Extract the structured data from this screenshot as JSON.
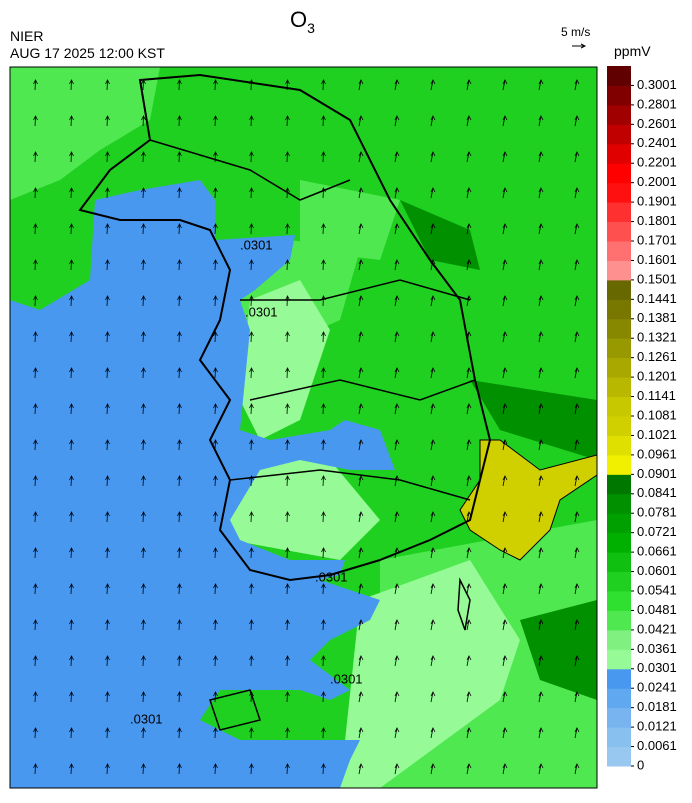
{
  "header": {
    "agency": "NIER",
    "datetime": "AUG 17 2025 12:00 KST",
    "title": {
      "main": "O",
      "sub": "3"
    },
    "wind_scale": "5 m/s"
  },
  "map": {
    "contour_label": ".0301"
  },
  "colorbar": {
    "unit": "ppmV",
    "ticks": [
      0,
      0.0061,
      0.0121,
      0.0181,
      0.0241,
      0.0301,
      0.0361,
      0.0421,
      0.0481,
      0.0541,
      0.0601,
      0.0661,
      0.0721,
      0.0781,
      0.0841,
      0.0901,
      0.0961,
      0.1021,
      0.1081,
      0.1141,
      0.1201,
      0.1261,
      0.1321,
      0.1381,
      0.1441,
      0.1501,
      0.1601,
      0.1701,
      0.1801,
      0.1901,
      0.2001,
      0.2201,
      0.2401,
      0.2601,
      0.2801,
      0.3001
    ],
    "colors": [
      "#98c8f0",
      "#88c0f0",
      "#78b4f0",
      "#60a8f0",
      "#4898f0",
      "#96fa96",
      "#80f080",
      "#50e850",
      "#30e030",
      "#20d020",
      "#10c010",
      "#00b000",
      "#00a000",
      "#009000",
      "#007800",
      "#f0f000",
      "#e0e000",
      "#d0d000",
      "#c8c800",
      "#b8b800",
      "#a8a800",
      "#989800",
      "#888800",
      "#787800",
      "#686800",
      "#ff9090",
      "#ff7070",
      "#ff5050",
      "#ff3030",
      "#ff1010",
      "#ff0000",
      "#e00000",
      "#c00000",
      "#a00000",
      "#800000",
      "#600000"
    ]
  }
}
